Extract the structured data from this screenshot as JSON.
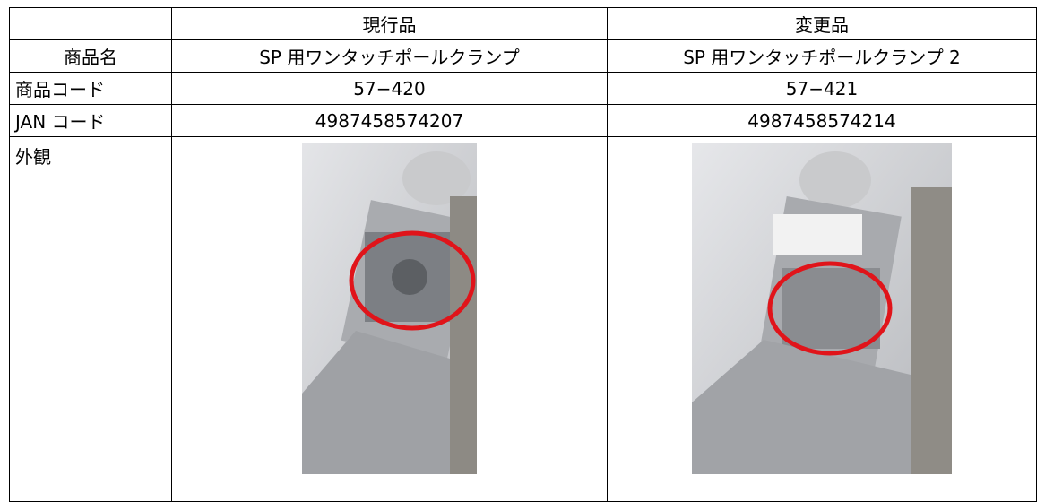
{
  "table": {
    "columns": [
      "現行品",
      "変更品"
    ],
    "rows": [
      [
        "商品名",
        "SP 用ワンタッチポールクランプ",
        "SP 用ワンタッチポールクランプ 2"
      ],
      [
        "商品コード",
        "57−420",
        "57−421"
      ],
      [
        "JAN コード",
        "4987458574207",
        "4987458574214"
      ]
    ],
    "appearance_label": "外観"
  }
}
